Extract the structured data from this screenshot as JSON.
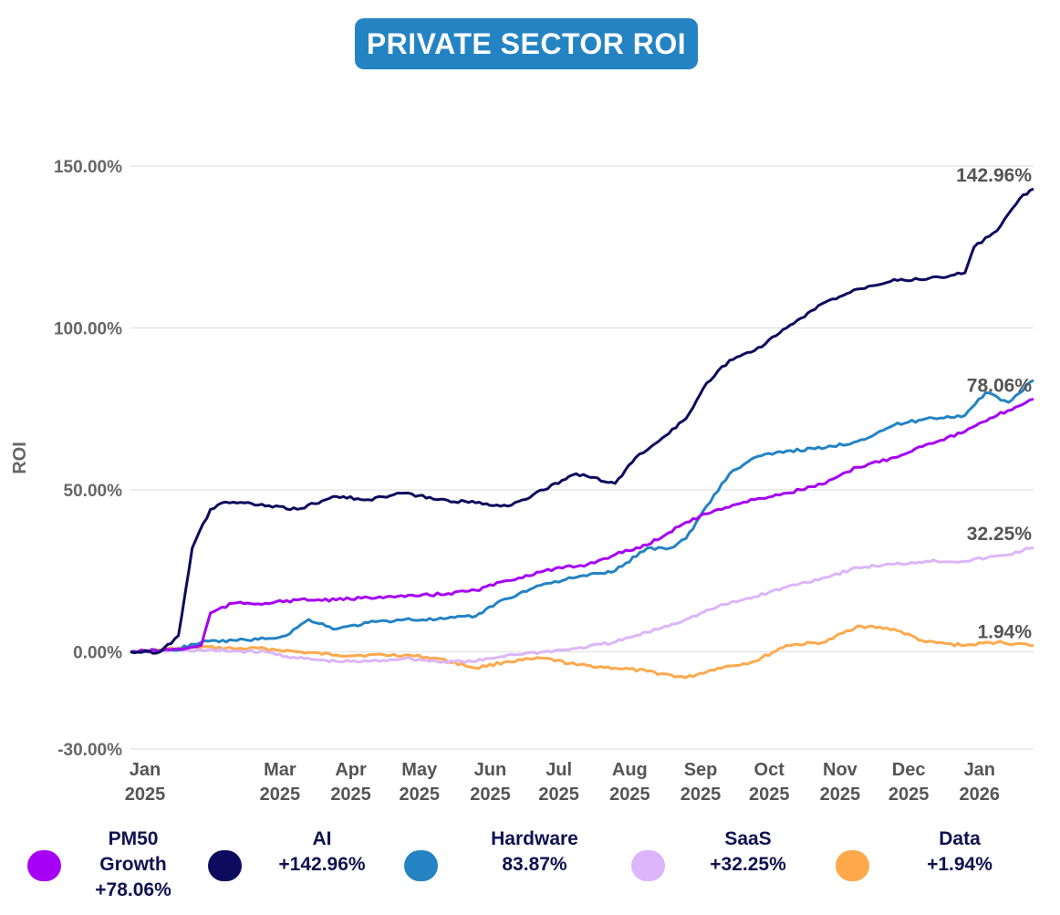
{
  "title": "PRIVATE SECTOR ROI",
  "legend": [
    {
      "name": "PM50 Growth",
      "label": "PM50\nGrowth\n+78.06%",
      "color": "#a600f5"
    },
    {
      "name": "AI",
      "label": "AI\n+142.96%",
      "color": "#0c0b5e"
    },
    {
      "name": "Hardware",
      "label": "Hardware\n83.87%",
      "color": "#2383c3"
    },
    {
      "name": "SaaS",
      "label": "SaaS\n+32.25%",
      "color": "#dcb5fa"
    },
    {
      "name": "Data",
      "label": "Data\n+1.94%",
      "color": "#ffa94d"
    }
  ],
  "chart_data": {
    "type": "line",
    "title": "PRIVATE SECTOR ROI",
    "xlabel": "",
    "ylabel": "ROI",
    "ylim": [
      -30,
      150
    ],
    "yticks": [
      -30,
      0,
      50,
      100,
      150
    ],
    "ytick_labels": [
      "-30.00%",
      "0.00%",
      "50.00%",
      "100.00%",
      "150.00%"
    ],
    "xlim": [
      "2025-01-01",
      "2026-01-31"
    ],
    "xticks": [
      {
        "date": "2025-01-01",
        "label": "Jan\n2025"
      },
      {
        "date": "2025-03-01",
        "label": "Mar\n2025"
      },
      {
        "date": "2025-04-01",
        "label": "Apr\n2025"
      },
      {
        "date": "2025-05-01",
        "label": "May\n2025"
      },
      {
        "date": "2025-06-01",
        "label": "Jun\n2025"
      },
      {
        "date": "2025-07-01",
        "label": "Jul\n2025"
      },
      {
        "date": "2025-08-01",
        "label": "Aug\n2025"
      },
      {
        "date": "2025-09-01",
        "label": "Sep\n2025"
      },
      {
        "date": "2025-10-01",
        "label": "Oct\n2025"
      },
      {
        "date": "2025-11-01",
        "label": "Nov\n2025"
      },
      {
        "date": "2025-12-01",
        "label": "Dec\n2025"
      },
      {
        "date": "2026-01-01",
        "label": "Jan\n2026"
      }
    ],
    "grid": true,
    "end_labels": [
      {
        "series": "AI",
        "text": "142.96%"
      },
      {
        "series": "PM50 Growth",
        "text": "78.06%"
      },
      {
        "series": "SaaS",
        "text": "32.25%"
      },
      {
        "series": "Data",
        "text": "1.94%"
      }
    ],
    "series": [
      {
        "name": "PM50 Growth",
        "color": "#a600f5",
        "x": [
          "2025-01-01",
          "2025-01-15",
          "2025-01-25",
          "2025-02-01",
          "2025-02-05",
          "2025-02-15",
          "2025-03-01",
          "2025-03-15",
          "2025-04-01",
          "2025-04-20",
          "2025-05-01",
          "2025-05-20",
          "2025-06-01",
          "2025-06-15",
          "2025-07-01",
          "2025-07-20",
          "2025-08-01",
          "2025-08-15",
          "2025-09-01",
          "2025-09-15",
          "2025-10-01",
          "2025-10-15",
          "2025-11-01",
          "2025-11-15",
          "2025-12-01",
          "2025-12-15",
          "2026-01-01",
          "2026-01-15",
          "2026-01-31"
        ],
        "y": [
          0,
          0.5,
          1,
          2,
          12,
          15,
          15,
          16,
          16,
          17,
          17,
          18,
          19,
          22,
          25,
          27,
          30,
          33,
          40,
          44,
          47,
          49,
          52,
          57,
          60,
          64,
          68,
          73,
          78.06
        ]
      },
      {
        "name": "AI",
        "color": "#0c0b5e",
        "x": [
          "2025-01-01",
          "2025-01-14",
          "2025-01-22",
          "2025-01-28",
          "2025-02-05",
          "2025-02-10",
          "2025-02-20",
          "2025-03-01",
          "2025-03-15",
          "2025-04-01",
          "2025-04-15",
          "2025-05-01",
          "2025-05-15",
          "2025-06-01",
          "2025-06-15",
          "2025-07-01",
          "2025-07-15",
          "2025-08-01",
          "2025-08-10",
          "2025-08-20",
          "2025-09-01",
          "2025-09-10",
          "2025-09-20",
          "2025-10-01",
          "2025-10-15",
          "2025-11-01",
          "2025-11-15",
          "2025-12-01",
          "2025-12-15",
          "2026-01-01",
          "2026-01-05",
          "2026-01-15",
          "2026-01-25",
          "2026-01-31"
        ],
        "y": [
          0,
          0,
          5,
          32,
          44,
          46,
          46,
          45,
          44,
          48,
          47,
          49,
          47,
          46,
          45,
          50,
          55,
          52,
          60,
          65,
          72,
          83,
          90,
          93,
          100,
          108,
          112,
          115,
          115,
          117,
          125,
          130,
          140,
          142.96
        ]
      },
      {
        "name": "Hardware",
        "color": "#2383c3",
        "x": [
          "2025-01-01",
          "2025-01-20",
          "2025-02-01",
          "2025-03-01",
          "2025-03-10",
          "2025-03-20",
          "2025-04-01",
          "2025-04-15",
          "2025-05-01",
          "2025-05-15",
          "2025-06-01",
          "2025-06-10",
          "2025-06-20",
          "2025-07-01",
          "2025-07-15",
          "2025-08-01",
          "2025-08-15",
          "2025-08-25",
          "2025-09-01",
          "2025-09-10",
          "2025-09-20",
          "2025-10-01",
          "2025-10-15",
          "2025-11-01",
          "2025-11-15",
          "2025-12-01",
          "2025-12-15",
          "2026-01-01",
          "2026-01-10",
          "2026-01-20",
          "2026-01-31"
        ],
        "y": [
          0,
          0.5,
          3,
          4,
          5,
          10,
          7,
          9,
          10,
          10,
          11,
          15,
          18,
          21,
          23,
          25,
          32,
          32,
          35,
          45,
          55,
          60,
          62,
          63,
          65,
          70,
          72,
          73,
          80,
          77,
          83.87
        ]
      },
      {
        "name": "SaaS",
        "color": "#dcb5fa",
        "x": [
          "2025-01-01",
          "2025-02-01",
          "2025-03-01",
          "2025-03-15",
          "2025-04-01",
          "2025-04-15",
          "2025-05-01",
          "2025-05-15",
          "2025-06-01",
          "2025-06-15",
          "2025-07-01",
          "2025-07-15",
          "2025-08-01",
          "2025-08-15",
          "2025-09-01",
          "2025-09-15",
          "2025-10-01",
          "2025-10-15",
          "2025-11-01",
          "2025-11-15",
          "2025-12-01",
          "2025-12-15",
          "2026-01-01",
          "2026-01-20",
          "2026-01-31"
        ],
        "y": [
          0,
          0.5,
          0,
          -2,
          -3,
          -3,
          -2,
          -3,
          -3,
          -1,
          0,
          1,
          3,
          6,
          10,
          14,
          17,
          20,
          23,
          26,
          27,
          28,
          28,
          30,
          32.25
        ]
      },
      {
        "name": "Data",
        "color": "#ffa94d",
        "x": [
          "2025-01-01",
          "2025-02-01",
          "2025-02-15",
          "2025-03-01",
          "2025-03-15",
          "2025-04-01",
          "2025-04-15",
          "2025-05-01",
          "2025-05-15",
          "2025-06-01",
          "2025-06-15",
          "2025-07-01",
          "2025-07-15",
          "2025-08-01",
          "2025-08-15",
          "2025-09-01",
          "2025-09-15",
          "2025-10-01",
          "2025-10-15",
          "2025-11-01",
          "2025-11-15",
          "2025-12-01",
          "2025-12-15",
          "2026-01-01",
          "2026-01-15",
          "2026-01-31"
        ],
        "y": [
          0,
          1.5,
          1,
          1,
          0,
          -1,
          -1,
          -1,
          -2,
          -5,
          -3,
          -2,
          -4,
          -5,
          -6,
          -8,
          -5,
          -3,
          2,
          3,
          8,
          7,
          3,
          2,
          3,
          1.94
        ]
      }
    ]
  }
}
